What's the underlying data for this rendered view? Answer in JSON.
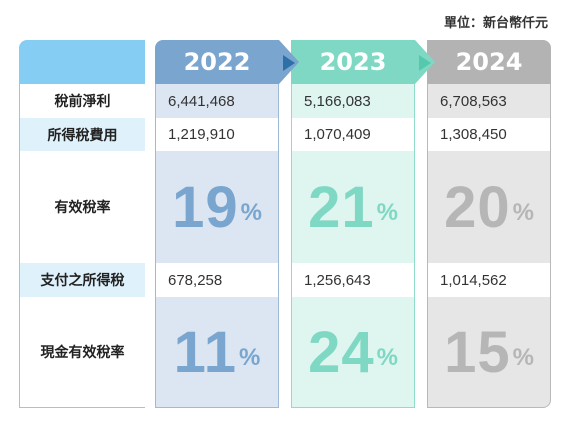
{
  "unit_label": "單位：新台幣仟元",
  "row_labels": [
    "稅前淨利",
    "所得稅費用",
    "有效稅率",
    "支付之所得稅",
    "現金有效稅率"
  ],
  "years": [
    {
      "year": "2022",
      "pretax_income": "6,441,468",
      "tax_expense": "1,219,910",
      "effective_rate": "19",
      "tax_paid": "678,258",
      "cash_rate": "11",
      "pct": "%"
    },
    {
      "year": "2023",
      "pretax_income": "5,166,083",
      "tax_expense": "1,070,409",
      "effective_rate": "21",
      "tax_paid": "1,256,643",
      "cash_rate": "24",
      "pct": "%"
    },
    {
      "year": "2024",
      "pretax_income": "6,708,563",
      "tax_expense": "1,308,450",
      "effective_rate": "20",
      "tax_paid": "1,014,562",
      "cash_rate": "15",
      "pct": "%"
    }
  ],
  "colors": {
    "y2022": "#7aa5cf",
    "y2023": "#7fd8c3",
    "y2024": "#b3b3b3",
    "label_header": "#85cdf3"
  }
}
